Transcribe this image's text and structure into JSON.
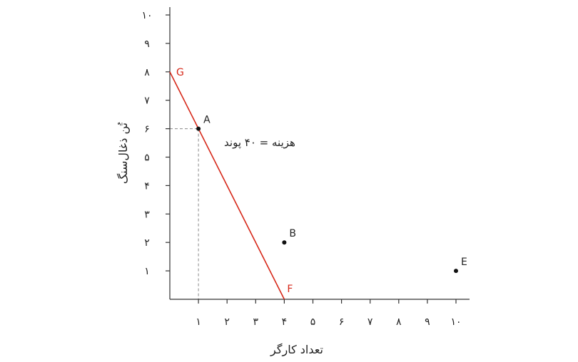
{
  "chart_data": {
    "type": "line",
    "xlabel": "تعداد کارگر",
    "ylabel": "تُن ذغال‌سنگ",
    "xlim": [
      0,
      10.4
    ],
    "ylim": [
      0,
      10
    ],
    "x_ticks": [
      {
        "value": 1,
        "label": "۱"
      },
      {
        "value": 2,
        "label": "۲"
      },
      {
        "value": 3,
        "label": "۳"
      },
      {
        "value": 4,
        "label": "۴"
      },
      {
        "value": 5,
        "label": "۵"
      },
      {
        "value": 6,
        "label": "۶"
      },
      {
        "value": 7,
        "label": "۷"
      },
      {
        "value": 8,
        "label": "۸"
      },
      {
        "value": 9,
        "label": "۹"
      },
      {
        "value": 10,
        "label": "۱۰"
      }
    ],
    "y_ticks": [
      {
        "value": 1,
        "label": "۱"
      },
      {
        "value": 2,
        "label": "۲"
      },
      {
        "value": 3,
        "label": "۳"
      },
      {
        "value": 4,
        "label": "۴"
      },
      {
        "value": 5,
        "label": "۵"
      },
      {
        "value": 6,
        "label": "۶"
      },
      {
        "value": 7,
        "label": "۷"
      },
      {
        "value": 8,
        "label": "۸"
      },
      {
        "value": 9,
        "label": "۹"
      },
      {
        "value": 10,
        "label": "۱۰"
      }
    ],
    "isocost_line": {
      "color": "#d62718",
      "start": {
        "label": "G",
        "x": 0,
        "y": 8
      },
      "end": {
        "label": "F",
        "x": 4,
        "y": 0
      },
      "annotation": "هزینه = ۴۰ پوند"
    },
    "points": [
      {
        "label": "A",
        "x": 1,
        "y": 6
      },
      {
        "label": "B",
        "x": 4,
        "y": 2
      },
      {
        "label": "E",
        "x": 10,
        "y": 1
      }
    ],
    "guides": {
      "point": "A",
      "style": "dashed"
    },
    "grid": false
  }
}
